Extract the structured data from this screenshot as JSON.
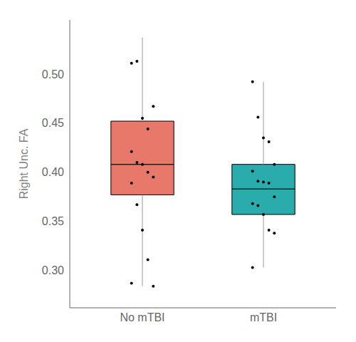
{
  "chart_data": {
    "type": "box",
    "categories": [
      "No mTBI",
      "mTBI"
    ],
    "colors": [
      "#E8786A",
      "#2AACAC"
    ],
    "boxes": [
      {
        "q1": 0.377,
        "median": 0.408,
        "q3": 0.452,
        "whisker_low": 0.284,
        "whisker_high": 0.537,
        "points": [
          0.511,
          0.513,
          0.455,
          0.444,
          0.467,
          0.421,
          0.41,
          0.408,
          0.4,
          0.395,
          0.389,
          0.367,
          0.341,
          0.311,
          0.284,
          0.287
        ]
      },
      {
        "q1": 0.357,
        "median": 0.383,
        "q3": 0.408,
        "whisker_low": 0.303,
        "whisker_high": 0.492,
        "points": [
          0.492,
          0.456,
          0.435,
          0.431,
          0.408,
          0.401,
          0.391,
          0.39,
          0.389,
          0.375,
          0.368,
          0.366,
          0.357,
          0.341,
          0.338,
          0.303
        ]
      }
    ],
    "ylabel": "Right Unc. FA",
    "ylim": [
      0.262,
      0.555
    ],
    "yticks": [
      {
        "value": 0.3,
        "label": "0.30"
      },
      0.35,
      {
        "value": 0.4,
        "label": "0.40"
      },
      0.45,
      {
        "value": 0.5,
        "label": "0.50"
      }
    ],
    "grid": false
  }
}
